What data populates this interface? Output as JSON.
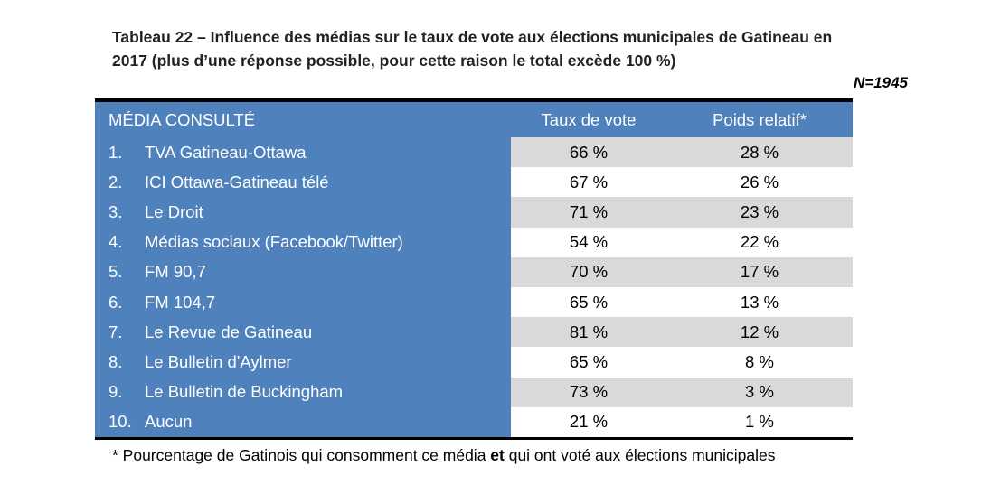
{
  "caption": {
    "line1": "Tableau 22 – Influence des médias sur le taux de vote aux élections municipales de Gatineau en",
    "line2": "2017 (plus d’une réponse possible, pour cette raison le total excède 100 %)"
  },
  "n_label": "N=1945",
  "table": {
    "headers": {
      "media": "MÉDIA CONSULTÉ",
      "taux": "Taux de vote",
      "poids": "Poids relatif*"
    },
    "rows": [
      {
        "num": "1.",
        "media": "TVA Gatineau-Ottawa",
        "taux": "66 %",
        "poids": "28 %"
      },
      {
        "num": "2.",
        "media": "ICI Ottawa-Gatineau télé",
        "taux": "67 %",
        "poids": "26 %"
      },
      {
        "num": "3.",
        "media": "Le Droit",
        "taux": "71 %",
        "poids": "23 %"
      },
      {
        "num": "4.",
        "media": "Médias sociaux (Facebook/Twitter)",
        "taux": "54 %",
        "poids": "22 %"
      },
      {
        "num": "5.",
        "media": "FM 90,7",
        "taux": "70 %",
        "poids": "17 %"
      },
      {
        "num": "6.",
        "media": "FM 104,7",
        "taux": "65 %",
        "poids": "13 %"
      },
      {
        "num": "7.",
        "media": "Le Revue de Gatineau",
        "taux": "81 %",
        "poids": "12 %"
      },
      {
        "num": "8.",
        "media": "Le Bulletin d'Aylmer",
        "taux": "65 %",
        "poids": "8 %"
      },
      {
        "num": "9.",
        "media": "Le Bulletin de Buckingham",
        "taux": "73 %",
        "poids": "3 %"
      },
      {
        "num": "10.",
        "media": "Aucun",
        "taux": "21 %",
        "poids": "1 %"
      }
    ]
  },
  "footnote": {
    "before": "* Pourcentage de Gatinois qui consomment ce média ",
    "emphasis": "et",
    "after": " qui ont voté aux élections municipales"
  },
  "colors": {
    "header_blue": "#4f81bd",
    "stripe_gray": "#d9d9d9",
    "rule_black": "#000000"
  }
}
